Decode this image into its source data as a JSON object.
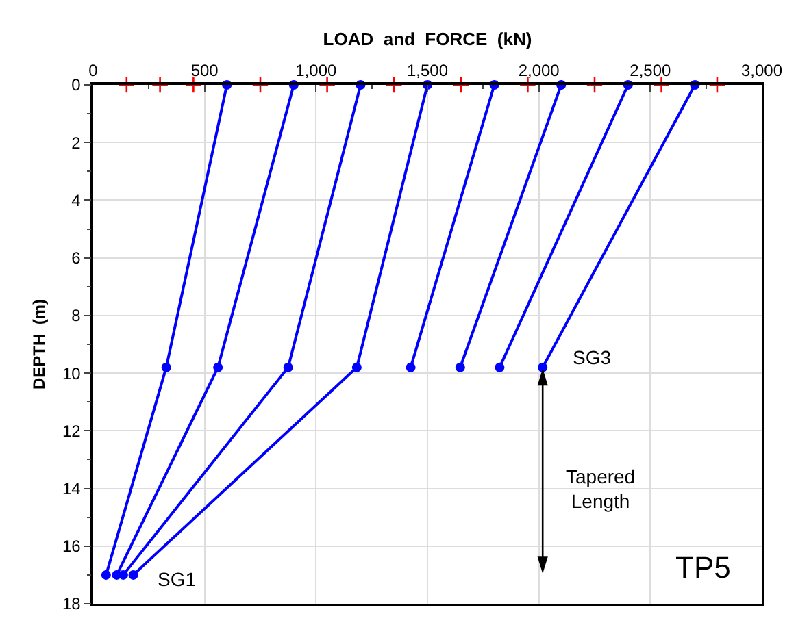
{
  "chart_data": {
    "type": "line",
    "xlabel": "LOAD  and  FORCE  (kN)",
    "ylabel": "DEPTH  (m)",
    "xlim": [
      0,
      3000
    ],
    "xticks": [
      0,
      500,
      {
        "value": 1000,
        "label": "1,000"
      },
      {
        "value": 1500,
        "label": "1,500"
      },
      {
        "value": 2000,
        "label": "2,000"
      },
      {
        "value": 2500,
        "label": "2,500"
      },
      {
        "value": 3000,
        "label": "3,000"
      }
    ],
    "ylim": [
      18,
      0
    ],
    "yticks": [
      0,
      2,
      4,
      6,
      8,
      10,
      12,
      14,
      16,
      18
    ],
    "grid": true,
    "legend": false,
    "marker": "circle",
    "line_style": "solid",
    "series": [
      {
        "color": "#0000ff",
        "x": [
          600,
          328,
          58
        ],
        "values": [
          0,
          9.8,
          17
        ]
      },
      {
        "color": "#0000ff",
        "x": [
          900,
          560,
          106
        ],
        "values": [
          0,
          9.8,
          17
        ]
      },
      {
        "color": "#0000ff",
        "x": [
          1200,
          875,
          135
        ],
        "values": [
          0,
          9.8,
          17
        ]
      },
      {
        "color": "#0000ff",
        "x": [
          1500,
          1183,
          180
        ],
        "values": [
          0,
          9.8,
          17
        ]
      },
      {
        "color": "#0000ff",
        "x": [
          1800,
          1425
        ],
        "values": [
          0,
          9.8
        ]
      },
      {
        "color": "#0000ff",
        "x": [
          2100,
          1647
        ],
        "values": [
          0,
          9.8
        ]
      },
      {
        "color": "#0000ff",
        "x": [
          2400,
          1824
        ],
        "values": [
          0,
          9.8
        ]
      },
      {
        "color": "#0000ff",
        "x": [
          2700,
          2017
        ],
        "values": [
          0,
          9.8
        ]
      },
      {
        "type": "scatter",
        "marker": "cross",
        "color": "#ff0000",
        "x": [
          150,
          300,
          450,
          750,
          1050,
          1350,
          1650,
          1950,
          2250,
          2550,
          2800
        ],
        "values": [
          0,
          0,
          0,
          0,
          0,
          0,
          0,
          0,
          0,
          0,
          0
        ]
      }
    ],
    "annotations": [
      "SG3",
      "SG1",
      "Tapered Length",
      "TP5"
    ]
  }
}
